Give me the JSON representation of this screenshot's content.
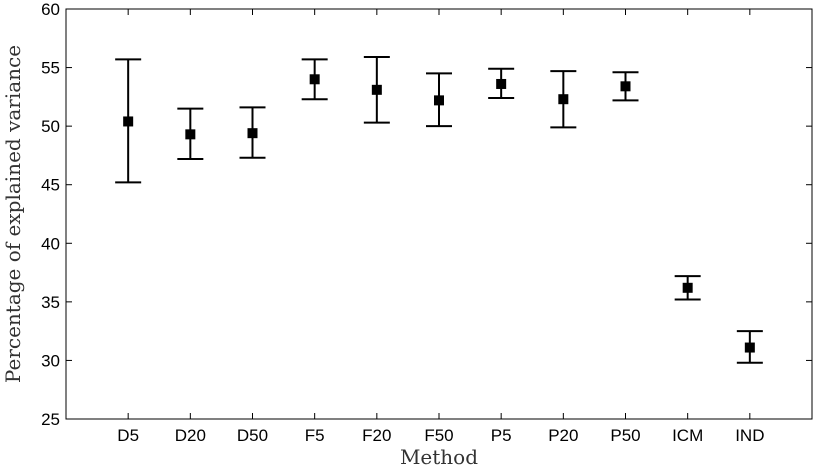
{
  "chart_data": {
    "type": "scatter",
    "title": "",
    "xlabel": "Method",
    "ylabel": "Percentage of explained variance",
    "ylim": [
      25,
      60
    ],
    "yticks": [
      25,
      30,
      35,
      40,
      45,
      50,
      55,
      60
    ],
    "grid": false,
    "categories": [
      "D5",
      "D20",
      "D50",
      "F5",
      "F20",
      "F50",
      "P5",
      "P20",
      "P50",
      "ICM",
      "IND"
    ],
    "series": [
      {
        "values": [
          50.4,
          49.3,
          49.4,
          54.0,
          53.1,
          52.2,
          53.6,
          52.3,
          53.4,
          36.2,
          31.1
        ],
        "lower": [
          45.2,
          47.2,
          47.3,
          52.3,
          50.3,
          50.0,
          52.4,
          49.9,
          52.2,
          35.2,
          29.8
        ],
        "upper": [
          55.7,
          51.5,
          51.6,
          55.7,
          55.9,
          54.5,
          54.9,
          54.7,
          54.6,
          37.2,
          32.5
        ]
      }
    ],
    "colors": {
      "marker": "#000000",
      "axis": "#000000",
      "background": "#ffffff"
    }
  }
}
